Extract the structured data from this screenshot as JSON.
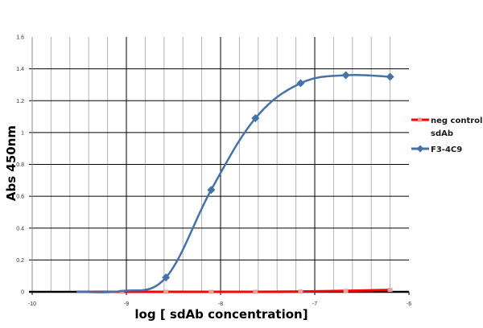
{
  "chart_data": {
    "type": "line",
    "title": "",
    "xlabel": "log [ sdAb concentration]",
    "ylabel": "Abs 450nm",
    "xlim": [
      -10,
      -6
    ],
    "ylim": [
      0,
      1.6
    ],
    "x_ticks": [
      -10,
      -9,
      -8,
      -7,
      -6
    ],
    "y_ticks": [
      0,
      0.2,
      0.4,
      0.6,
      0.8,
      1,
      1.2,
      1.4,
      1.6
    ],
    "x_minor_step": 0.2,
    "grid": {
      "major_x": true,
      "minor_x": true,
      "major_y": true
    },
    "legend_position": "right",
    "smooth": true,
    "x": [
      -9.53,
      -9.05,
      -8.58,
      -8.1,
      -7.63,
      -7.15,
      -6.67,
      -6.2
    ],
    "series": [
      {
        "name": "neg control sdAb",
        "color": "#ff0000",
        "marker": "square",
        "values": [
          0.0,
          0.0,
          0.0,
          0.0,
          0.0,
          0.002,
          0.006,
          0.012
        ]
      },
      {
        "name": "F3-4C9",
        "color": "#4572a7",
        "marker": "diamond",
        "values": [
          0.0,
          0.005,
          0.09,
          0.64,
          1.09,
          1.31,
          1.36,
          1.35
        ]
      }
    ]
  },
  "legend": {
    "items": [
      {
        "line1": "neg control",
        "line2": "sdAb",
        "color": "#ff0000"
      },
      {
        "line1": "F3-4C9",
        "line2": "",
        "color": "#4572a7"
      }
    ]
  },
  "axes": {
    "x_title": "log [ sdAb concentration]",
    "y_title": "Abs 450nm",
    "x_tick_labels": [
      "-10",
      "-9",
      "-8",
      "-7",
      "-6"
    ],
    "y_tick_labels": [
      "0",
      "0.2",
      "0.4",
      "0.6",
      "0.8",
      "1",
      "1.2",
      "1.4",
      "1.6"
    ]
  }
}
